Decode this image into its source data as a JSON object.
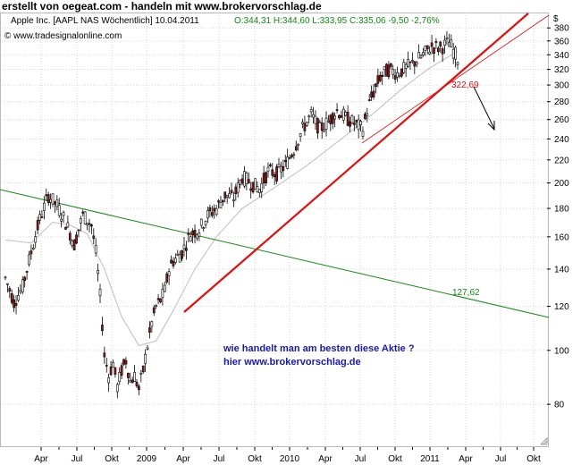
{
  "caption": "erstellt von oegeat.com - handeln mit www.brokervorschlag.de",
  "header": {
    "name": "Apple Inc. [AAPL NAS  Wöchentlich] 10.04.2011",
    "ohlc": "O:344,31 H:344,60 L:333,95 C:335,06 -9,50 -2,76%",
    "copyright": "© www.tradesignalonline.com"
  },
  "currency_symbol": "$",
  "colors": {
    "candle_up": "#ffffff",
    "candle_down": "#8b1a1a",
    "trend_red": "#e01010",
    "trend_green": "#138a13",
    "moving_average": "#c8c8c8",
    "annotation_blue": "#1a1aa8"
  },
  "chart_data": {
    "type": "candlestick",
    "y_scale": "log",
    "ylim": [
      67,
      405
    ],
    "y_ticks": [
      80,
      100,
      120,
      140,
      160,
      180,
      200,
      220,
      240,
      260,
      280,
      300,
      320,
      340,
      360,
      380
    ],
    "x_tick_labels": [
      "Apr",
      "Jul",
      "Okt",
      "2009",
      "Apr",
      "Jul",
      "Okt",
      "2010",
      "Apr",
      "Jul",
      "Okt",
      "2011",
      "Apr",
      "Jul",
      "Okt"
    ],
    "grid": true,
    "annotations": {
      "red_trend_value": "322,69",
      "green_trend_value": "127,62",
      "text_line1": "wie handelt man am besten diese Aktie ?",
      "text_line2": "hier www.brokervorschlag.de"
    },
    "price_path": [
      [
        0,
        135
      ],
      [
        4,
        122
      ],
      [
        8,
        130
      ],
      [
        12,
        150
      ],
      [
        16,
        172
      ],
      [
        20,
        190
      ],
      [
        24,
        182
      ],
      [
        28,
        170
      ],
      [
        32,
        155
      ],
      [
        36,
        175
      ],
      [
        40,
        168
      ],
      [
        42,
        150
      ],
      [
        44,
        125
      ],
      [
        46,
        98
      ],
      [
        48,
        90
      ],
      [
        50,
        95
      ],
      [
        52,
        86
      ],
      [
        54,
        92
      ],
      [
        56,
        96
      ],
      [
        58,
        88
      ],
      [
        60,
        90
      ],
      [
        62,
        85
      ],
      [
        64,
        92
      ],
      [
        66,
        102
      ],
      [
        68,
        112
      ],
      [
        70,
        120
      ],
      [
        72,
        123
      ],
      [
        74,
        128
      ],
      [
        76,
        140
      ],
      [
        78,
        145
      ],
      [
        82,
        150
      ],
      [
        86,
        162
      ],
      [
        90,
        165
      ],
      [
        94,
        175
      ],
      [
        98,
        180
      ],
      [
        102,
        190
      ],
      [
        106,
        188
      ],
      [
        110,
        205
      ],
      [
        114,
        200
      ],
      [
        118,
        195
      ],
      [
        122,
        210
      ],
      [
        126,
        208
      ],
      [
        130,
        215
      ],
      [
        134,
        230
      ],
      [
        138,
        250
      ],
      [
        142,
        265
      ],
      [
        146,
        250
      ],
      [
        150,
        258
      ],
      [
        154,
        270
      ],
      [
        158,
        262
      ],
      [
        162,
        256
      ],
      [
        166,
        250
      ],
      [
        168,
        270
      ],
      [
        170,
        285
      ],
      [
        174,
        310
      ],
      [
        178,
        320
      ],
      [
        182,
        315
      ],
      [
        186,
        322
      ],
      [
        190,
        330
      ],
      [
        194,
        340
      ],
      [
        198,
        352
      ],
      [
        202,
        350
      ],
      [
        206,
        358
      ],
      [
        208,
        346
      ],
      [
        210,
        335
      ]
    ],
    "moving_average": [
      [
        0,
        158
      ],
      [
        12,
        156
      ],
      [
        22,
        170
      ],
      [
        30,
        168
      ],
      [
        38,
        162
      ],
      [
        46,
        140
      ],
      [
        54,
        115
      ],
      [
        62,
        102
      ],
      [
        70,
        104
      ],
      [
        78,
        118
      ],
      [
        88,
        140
      ],
      [
        98,
        160
      ],
      [
        110,
        180
      ],
      [
        124,
        195
      ],
      [
        140,
        215
      ],
      [
        156,
        240
      ],
      [
        170,
        265
      ],
      [
        184,
        295
      ],
      [
        196,
        320
      ],
      [
        210,
        345
      ]
    ]
  }
}
